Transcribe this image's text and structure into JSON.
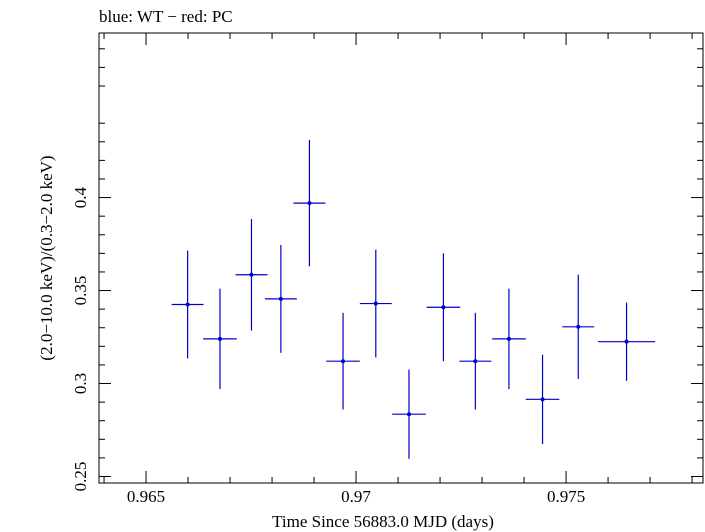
{
  "chart_data": {
    "type": "scatter",
    "title": "blue: WT − red: PC",
    "xlabel": "Time Since 56883.0 MJD (days)",
    "ylabel": "(2.0−10.0 keV)/(0.3−2.0 keV)",
    "xlim": [
      0.96388,
      0.97826
    ],
    "ylim": [
      0.2465,
      0.4885
    ],
    "x_ticks": [
      {
        "value": 0.965,
        "label": "0.965"
      },
      {
        "value": 0.97,
        "label": "0.97"
      },
      {
        "value": 0.975,
        "label": "0.975"
      }
    ],
    "y_ticks": [
      {
        "value": 0.25,
        "label": "0.25"
      },
      {
        "value": 0.3,
        "label": "0.3"
      },
      {
        "value": 0.35,
        "label": "0.35"
      },
      {
        "value": 0.4,
        "label": "0.4"
      }
    ],
    "grid": false,
    "series": [
      {
        "color": "#0000cc",
        "points": [
          {
            "x": 0.96599,
            "xerr": 0.00038,
            "y": 0.3425,
            "yerr_low": 0.029,
            "yerr_high": 0.029
          },
          {
            "x": 0.96676,
            "xerr": 0.0004,
            "y": 0.324,
            "yerr_low": 0.027,
            "yerr_high": 0.027
          },
          {
            "x": 0.96751,
            "xerr": 0.00038,
            "y": 0.3585,
            "yerr_low": 0.03,
            "yerr_high": 0.03
          },
          {
            "x": 0.96821,
            "xerr": 0.00038,
            "y": 0.3455,
            "yerr_low": 0.029,
            "yerr_high": 0.029
          },
          {
            "x": 0.96889,
            "xerr": 0.00038,
            "y": 0.397,
            "yerr_low": 0.034,
            "yerr_high": 0.034
          },
          {
            "x": 0.96969,
            "xerr": 0.0004,
            "y": 0.312,
            "yerr_low": 0.026,
            "yerr_high": 0.026
          },
          {
            "x": 0.97047,
            "xerr": 0.00038,
            "y": 0.343,
            "yerr_low": 0.029,
            "yerr_high": 0.029
          },
          {
            "x": 0.97126,
            "xerr": 0.0004,
            "y": 0.2835,
            "yerr_low": 0.024,
            "yerr_high": 0.024
          },
          {
            "x": 0.97208,
            "xerr": 0.0004,
            "y": 0.341,
            "yerr_low": 0.029,
            "yerr_high": 0.029
          },
          {
            "x": 0.97284,
            "xerr": 0.00038,
            "y": 0.312,
            "yerr_low": 0.026,
            "yerr_high": 0.026
          },
          {
            "x": 0.97364,
            "xerr": 0.0004,
            "y": 0.324,
            "yerr_low": 0.027,
            "yerr_high": 0.027
          },
          {
            "x": 0.97444,
            "xerr": 0.0004,
            "y": 0.2915,
            "yerr_low": 0.024,
            "yerr_high": 0.024
          },
          {
            "x": 0.97529,
            "xerr": 0.00038,
            "y": 0.3305,
            "yerr_low": 0.028,
            "yerr_high": 0.028
          },
          {
            "x": 0.97644,
            "xerr": 0.00068,
            "y": 0.3225,
            "yerr_low": 0.021,
            "yerr_high": 0.021
          }
        ]
      }
    ]
  }
}
